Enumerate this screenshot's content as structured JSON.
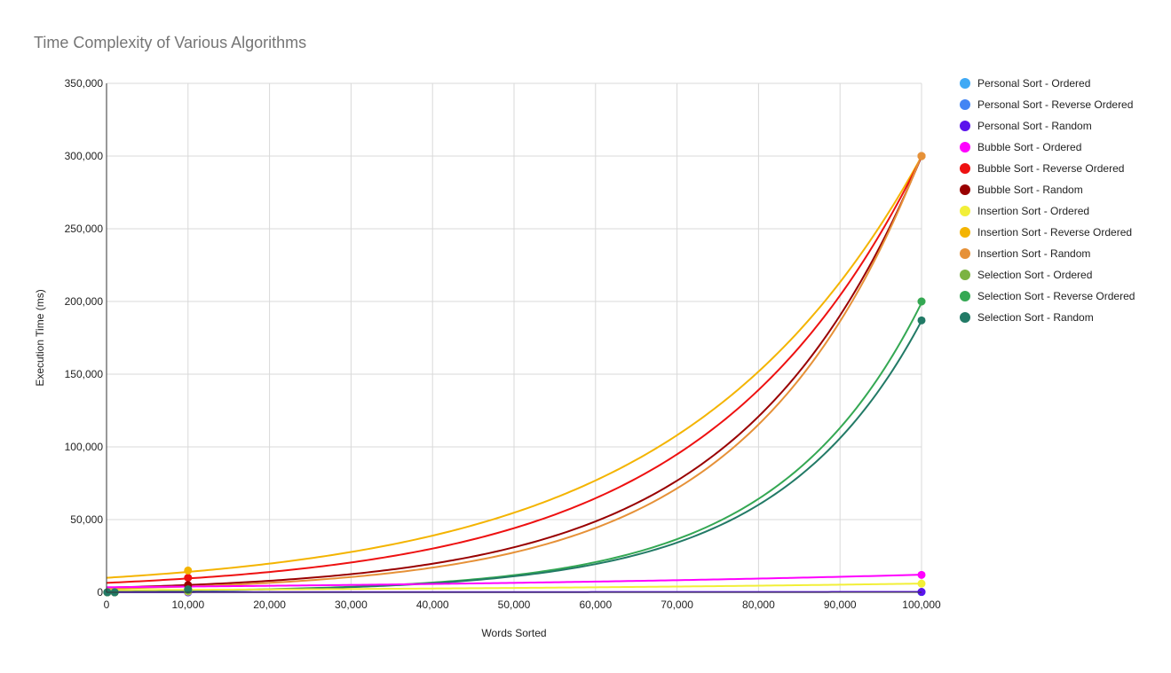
{
  "chart_data": {
    "type": "scatter",
    "title": "Time Complexity of Various Algorithms",
    "xlabel": "Words Sorted",
    "ylabel": "Execution Time (ms)",
    "xlim": [
      0,
      100000
    ],
    "ylim": [
      0,
      350000
    ],
    "x_ticks": [
      "0",
      "10,000",
      "20,000",
      "30,000",
      "40,000",
      "50,000",
      "60,000",
      "70,000",
      "80,000",
      "90,000",
      "100,000"
    ],
    "y_ticks": [
      "0",
      "50,000",
      "100,000",
      "150,000",
      "200,000",
      "250,000",
      "300,000",
      "350,000"
    ],
    "grid": true,
    "legend_position": "right",
    "trendline": "exponential",
    "series": [
      {
        "name": "Personal Sort - Ordered",
        "color": "#3fa9f5",
        "points": [
          [
            100,
            0
          ],
          [
            1000,
            0
          ],
          [
            10000,
            0
          ],
          [
            100000,
            200
          ]
        ]
      },
      {
        "name": "Personal Sort - Reverse Ordered",
        "color": "#4285f4",
        "points": [
          [
            100,
            0
          ],
          [
            1000,
            0
          ],
          [
            10000,
            0
          ],
          [
            100000,
            200
          ]
        ]
      },
      {
        "name": "Personal Sort - Random",
        "color": "#5b13ec",
        "points": [
          [
            100,
            0
          ],
          [
            1000,
            0
          ],
          [
            10000,
            0
          ],
          [
            100000,
            300
          ]
        ]
      },
      {
        "name": "Bubble Sort - Ordered",
        "color": "#ff00ff",
        "points": [
          [
            100,
            0
          ],
          [
            1000,
            0
          ],
          [
            10000,
            1000
          ],
          [
            100000,
            12000
          ]
        ]
      },
      {
        "name": "Bubble Sort - Reverse Ordered",
        "color": "#ee1111",
        "points": [
          [
            100,
            0
          ],
          [
            1000,
            0
          ],
          [
            10000,
            10000
          ],
          [
            100000,
            300000
          ]
        ]
      },
      {
        "name": "Bubble Sort - Random",
        "color": "#990000",
        "points": [
          [
            100,
            0
          ],
          [
            1000,
            0
          ],
          [
            10000,
            5000
          ],
          [
            100000,
            300000
          ]
        ]
      },
      {
        "name": "Insertion Sort - Ordered",
        "color": "#f2ef38",
        "points": [
          [
            100,
            0
          ],
          [
            1000,
            0
          ],
          [
            10000,
            500
          ],
          [
            100000,
            6000
          ]
        ]
      },
      {
        "name": "Insertion Sort - Reverse Ordered",
        "color": "#f4b400",
        "points": [
          [
            100,
            0
          ],
          [
            1000,
            0
          ],
          [
            10000,
            15000
          ],
          [
            100000,
            300000
          ]
        ]
      },
      {
        "name": "Insertion Sort - Random",
        "color": "#e69138",
        "points": [
          [
            100,
            0
          ],
          [
            1000,
            0
          ],
          [
            10000,
            2000
          ],
          [
            100000,
            300000
          ]
        ]
      },
      {
        "name": "Selection Sort - Ordered",
        "color": "#7cb342",
        "points": [
          [
            100,
            0
          ],
          [
            1000,
            0
          ],
          [
            10000,
            1000
          ],
          [
            100000,
            200000
          ]
        ]
      },
      {
        "name": "Selection Sort - Reverse Ordered",
        "color": "#34a853",
        "points": [
          [
            100,
            0
          ],
          [
            1000,
            0
          ],
          [
            10000,
            2000
          ],
          [
            100000,
            200000
          ]
        ]
      },
      {
        "name": "Selection Sort - Random",
        "color": "#227a66",
        "points": [
          [
            100,
            0
          ],
          [
            1000,
            0
          ],
          [
            10000,
            2000
          ],
          [
            100000,
            187000
          ]
        ]
      }
    ],
    "trendlines": [
      {
        "name": "Insertion Sort - Reverse Ordered",
        "color": "#f4b400",
        "a": 10000,
        "b": 3.4e-05
      },
      {
        "name": "Bubble Sort - Reverse Ordered",
        "color": "#ee1111",
        "a": 6500,
        "b": 3.83e-05
      },
      {
        "name": "Bubble Sort - Random",
        "color": "#990000",
        "a": 3200,
        "b": 4.54e-05
      },
      {
        "name": "Insertion Sort - Random",
        "color": "#e69138",
        "a": 2500,
        "b": 4.79e-05
      },
      {
        "name": "Selection Sort - Reverse Ordered",
        "color": "#34a853",
        "a": 700,
        "b": 5.65e-05
      },
      {
        "name": "Selection Sort - Random",
        "color": "#227a66",
        "a": 650,
        "b": 5.66e-05
      },
      {
        "name": "Bubble Sort - Ordered",
        "color": "#ff00ff",
        "a": 3500,
        "b": 1.24e-05
      },
      {
        "name": "Insertion Sort - Ordered",
        "color": "#f2ef38",
        "a": 1500,
        "b": 1.39e-05
      },
      {
        "name": "Personal Sort - Random",
        "color": "#5b13ec",
        "a": 100,
        "b": 1.1e-05
      }
    ]
  }
}
